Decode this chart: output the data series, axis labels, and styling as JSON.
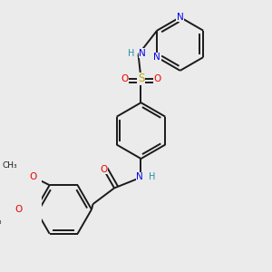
{
  "bg_color": "#ebebeb",
  "bond_color": "#1a1a1a",
  "bond_width": 1.4,
  "dbo": 0.018,
  "atom_colors": {
    "N": "#0000ee",
    "O": "#ee0000",
    "S": "#bbaa00",
    "C": "#1a1a1a",
    "H": "#2090a0"
  }
}
